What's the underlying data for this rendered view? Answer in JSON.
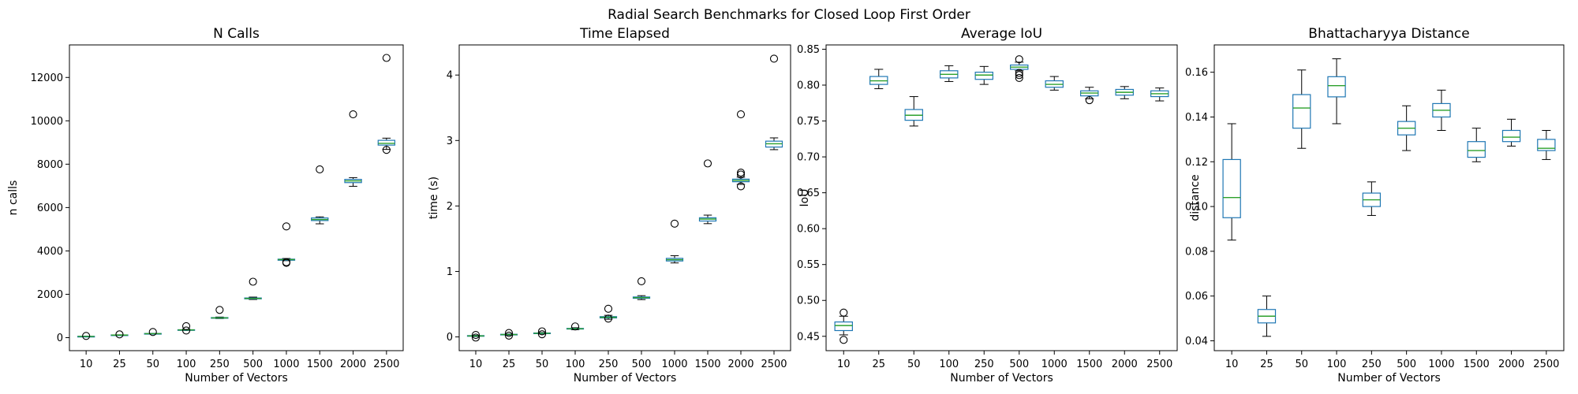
{
  "figure": {
    "title": "Radial Search Benchmarks for Closed Loop First Order"
  },
  "chart_data": [
    {
      "type": "box",
      "title": "N Calls",
      "xlabel": "Number of Vectors",
      "ylabel": "n calls",
      "categories": [
        "10",
        "25",
        "50",
        "100",
        "250",
        "500",
        "1000",
        "1500",
        "2000",
        "2500"
      ],
      "ylim": [
        -600,
        13500
      ],
      "yticks": [
        0,
        2000,
        4000,
        6000,
        8000,
        10000,
        12000
      ],
      "grid": false,
      "boxes": [
        {
          "whislo": 40,
          "q1": 50,
          "med": 55,
          "q3": 60,
          "whishi": 70,
          "fliers": [
            80
          ]
        },
        {
          "whislo": 105,
          "q1": 112,
          "med": 118,
          "q3": 125,
          "whishi": 132,
          "fliers": [
            150
          ]
        },
        {
          "whislo": 170,
          "q1": 180,
          "med": 185,
          "q3": 192,
          "whishi": 200,
          "fliers": [
            260
          ]
        },
        {
          "whislo": 330,
          "q1": 345,
          "med": 355,
          "q3": 365,
          "whishi": 380,
          "fliers": [
            530,
            330
          ]
        },
        {
          "whislo": 880,
          "q1": 900,
          "med": 910,
          "q3": 925,
          "whishi": 950,
          "fliers": [
            1280
          ]
        },
        {
          "whislo": 1760,
          "q1": 1790,
          "med": 1810,
          "q3": 1830,
          "whishi": 1870,
          "fliers": [
            2580
          ]
        },
        {
          "whislo": 3550,
          "q1": 3570,
          "med": 3600,
          "q3": 3620,
          "whishi": 3650,
          "fliers": [
            5130,
            3450,
            3480
          ]
        },
        {
          "whislo": 5250,
          "q1": 5400,
          "med": 5450,
          "q3": 5520,
          "whishi": 5570,
          "fliers": [
            7760
          ]
        },
        {
          "whislo": 6980,
          "q1": 7150,
          "med": 7230,
          "q3": 7300,
          "whishi": 7380,
          "fliers": [
            10300
          ]
        },
        {
          "whislo": 8680,
          "q1": 8880,
          "med": 8960,
          "q3": 9100,
          "whishi": 9200,
          "fliers": [
            12900,
            8660
          ]
        }
      ]
    },
    {
      "type": "box",
      "title": "Time Elapsed",
      "xlabel": "Number of Vectors",
      "ylabel": "time (s)",
      "categories": [
        "10",
        "25",
        "50",
        "100",
        "250",
        "500",
        "1000",
        "1500",
        "2000",
        "2500"
      ],
      "ylim": [
        -0.21,
        4.46
      ],
      "yticks": [
        0,
        1,
        2,
        3,
        4
      ],
      "grid": false,
      "boxes": [
        {
          "whislo": 0.005,
          "q1": 0.01,
          "med": 0.015,
          "q3": 0.02,
          "whishi": 0.025,
          "fliers": [
            0.03,
            -0.01
          ]
        },
        {
          "whislo": 0.025,
          "q1": 0.032,
          "med": 0.036,
          "q3": 0.04,
          "whishi": 0.045,
          "fliers": [
            0.06,
            0.02
          ]
        },
        {
          "whislo": 0.045,
          "q1": 0.052,
          "med": 0.056,
          "q3": 0.06,
          "whishi": 0.066,
          "fliers": [
            0.085,
            0.04
          ]
        },
        {
          "whislo": 0.11,
          "q1": 0.12,
          "med": 0.125,
          "q3": 0.13,
          "whishi": 0.14,
          "fliers": [
            0.16
          ]
        },
        {
          "whislo": 0.27,
          "q1": 0.29,
          "med": 0.3,
          "q3": 0.31,
          "whishi": 0.33,
          "fliers": [
            0.43,
            0.28
          ]
        },
        {
          "whislo": 0.57,
          "q1": 0.59,
          "med": 0.6,
          "q3": 0.61,
          "whishi": 0.63,
          "fliers": [
            0.85
          ]
        },
        {
          "whislo": 1.13,
          "q1": 1.16,
          "med": 1.18,
          "q3": 1.2,
          "whishi": 1.24,
          "fliers": [
            1.73
          ]
        },
        {
          "whislo": 1.73,
          "q1": 1.77,
          "med": 1.8,
          "q3": 1.82,
          "whishi": 1.86,
          "fliers": [
            2.65
          ]
        },
        {
          "whislo": 2.33,
          "q1": 2.37,
          "med": 2.39,
          "q3": 2.41,
          "whishi": 2.44,
          "fliers": [
            3.4,
            2.51,
            2.48,
            2.3
          ]
        },
        {
          "whislo": 2.86,
          "q1": 2.9,
          "med": 2.95,
          "q3": 2.99,
          "whishi": 3.04,
          "fliers": [
            4.25
          ]
        }
      ]
    },
    {
      "type": "box",
      "title": "Average IoU",
      "xlabel": "Number of Vectors",
      "ylabel": "IoU",
      "categories": [
        "10",
        "25",
        "50",
        "100",
        "250",
        "500",
        "1000",
        "1500",
        "2000",
        "2500"
      ],
      "ylim": [
        0.43,
        0.856
      ],
      "yticks": [
        0.45,
        0.5,
        0.55,
        0.6,
        0.65,
        0.7,
        0.75,
        0.8,
        0.85
      ],
      "ytick_labels": [
        "0.45",
        "0.50",
        "0.55",
        "0.60",
        "0.65",
        "0.70",
        "0.75",
        "0.80",
        "0.85"
      ],
      "grid": false,
      "boxes": [
        {
          "whislo": 0.452,
          "q1": 0.458,
          "med": 0.465,
          "q3": 0.47,
          "whishi": 0.478,
          "fliers": [
            0.483,
            0.445
          ]
        },
        {
          "whislo": 0.795,
          "q1": 0.801,
          "med": 0.806,
          "q3": 0.812,
          "whishi": 0.822,
          "fliers": []
        },
        {
          "whislo": 0.743,
          "q1": 0.751,
          "med": 0.758,
          "q3": 0.766,
          "whishi": 0.784,
          "fliers": []
        },
        {
          "whislo": 0.805,
          "q1": 0.81,
          "med": 0.815,
          "q3": 0.82,
          "whishi": 0.827,
          "fliers": []
        },
        {
          "whislo": 0.801,
          "q1": 0.808,
          "med": 0.814,
          "q3": 0.818,
          "whishi": 0.826,
          "fliers": []
        },
        {
          "whislo": 0.82,
          "q1": 0.822,
          "med": 0.825,
          "q3": 0.828,
          "whishi": 0.832,
          "fliers": [
            0.836,
            0.817,
            0.814,
            0.81
          ]
        },
        {
          "whislo": 0.793,
          "q1": 0.797,
          "med": 0.801,
          "q3": 0.806,
          "whishi": 0.812,
          "fliers": []
        },
        {
          "whislo": 0.781,
          "q1": 0.785,
          "med": 0.789,
          "q3": 0.792,
          "whishi": 0.797,
          "fliers": [
            0.779
          ]
        },
        {
          "whislo": 0.781,
          "q1": 0.786,
          "med": 0.79,
          "q3": 0.794,
          "whishi": 0.798,
          "fliers": []
        },
        {
          "whislo": 0.778,
          "q1": 0.784,
          "med": 0.788,
          "q3": 0.792,
          "whishi": 0.796,
          "fliers": []
        }
      ]
    },
    {
      "type": "box",
      "title": "Bhattacharyya Distance",
      "xlabel": "Number of Vectors",
      "ylabel": "distance",
      "categories": [
        "10",
        "25",
        "50",
        "100",
        "250",
        "500",
        "1000",
        "1500",
        "2000",
        "2500"
      ],
      "ylim": [
        0.0356,
        0.1722
      ],
      "yticks": [
        0.04,
        0.06,
        0.08,
        0.1,
        0.12,
        0.14,
        0.16
      ],
      "ytick_labels": [
        "0.04",
        "0.06",
        "0.08",
        "0.10",
        "0.12",
        "0.14",
        "0.16"
      ],
      "grid": false,
      "boxes": [
        {
          "whislo": 0.085,
          "q1": 0.095,
          "med": 0.104,
          "q3": 0.121,
          "whishi": 0.137,
          "fliers": []
        },
        {
          "whislo": 0.042,
          "q1": 0.048,
          "med": 0.051,
          "q3": 0.054,
          "whishi": 0.06,
          "fliers": []
        },
        {
          "whislo": 0.126,
          "q1": 0.135,
          "med": 0.144,
          "q3": 0.15,
          "whishi": 0.161,
          "fliers": []
        },
        {
          "whislo": 0.137,
          "q1": 0.149,
          "med": 0.154,
          "q3": 0.158,
          "whishi": 0.166,
          "fliers": []
        },
        {
          "whislo": 0.096,
          "q1": 0.1,
          "med": 0.103,
          "q3": 0.106,
          "whishi": 0.111,
          "fliers": []
        },
        {
          "whislo": 0.125,
          "q1": 0.132,
          "med": 0.135,
          "q3": 0.138,
          "whishi": 0.145,
          "fliers": []
        },
        {
          "whislo": 0.134,
          "q1": 0.14,
          "med": 0.143,
          "q3": 0.146,
          "whishi": 0.152,
          "fliers": []
        },
        {
          "whislo": 0.12,
          "q1": 0.122,
          "med": 0.125,
          "q3": 0.129,
          "whishi": 0.135,
          "fliers": []
        },
        {
          "whislo": 0.127,
          "q1": 0.129,
          "med": 0.131,
          "q3": 0.134,
          "whishi": 0.139,
          "fliers": []
        },
        {
          "whislo": 0.121,
          "q1": 0.125,
          "med": 0.126,
          "q3": 0.13,
          "whishi": 0.134,
          "fliers": []
        }
      ]
    }
  ],
  "colors": {
    "box": "#1f77b4",
    "median": "#2ca02c",
    "whisker": "#000000",
    "flier": "#000000",
    "axes": "#000000"
  }
}
